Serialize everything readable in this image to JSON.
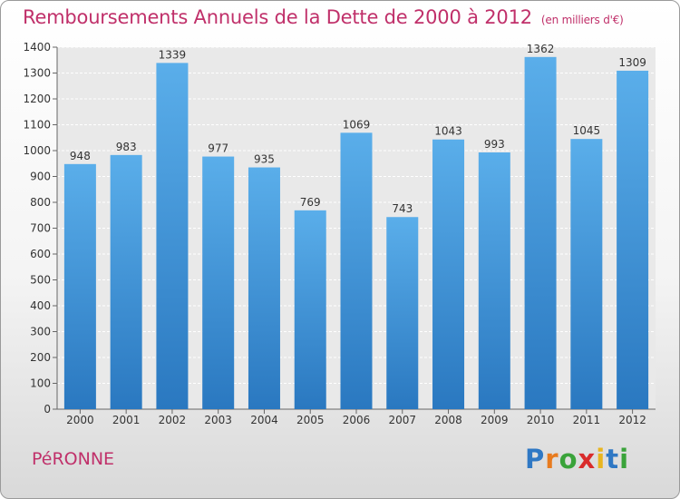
{
  "chart_data": {
    "type": "bar",
    "title": "Remboursements Annuels de la Dette de 2000 à 2012",
    "unit_label": "(en milliers d'€)",
    "categories": [
      "2000",
      "2001",
      "2002",
      "2003",
      "2004",
      "2005",
      "2006",
      "2007",
      "2008",
      "2009",
      "2010",
      "2011",
      "2012"
    ],
    "values": [
      948,
      983,
      1339,
      977,
      935,
      769,
      1069,
      743,
      1043,
      993,
      1362,
      1045,
      1309
    ],
    "ylim": [
      0,
      1400
    ],
    "yticks": [
      0,
      100,
      200,
      300,
      400,
      500,
      600,
      700,
      800,
      900,
      1000,
      1100,
      1200,
      1300,
      1400
    ],
    "grid": true,
    "bar_color": "#3b8fd6"
  },
  "footer": {
    "commune": "PéRONNE",
    "logo_letters": [
      "P",
      "r",
      "o",
      "x",
      "i",
      "t",
      "i"
    ],
    "logo_colors": [
      "#2f78c4",
      "#e87b1f",
      "#3aa33a",
      "#d92b2b",
      "#e8b51f",
      "#2f78c4",
      "#3aa33a"
    ]
  }
}
